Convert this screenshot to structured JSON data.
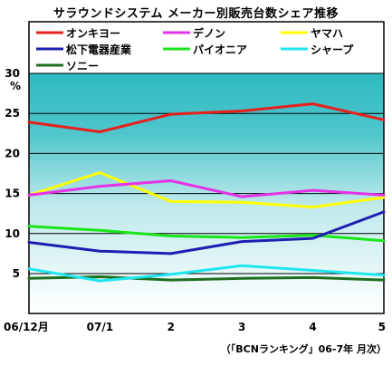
{
  "chart_data": {
    "type": "line",
    "title": "サラウンドシステム メーカー別販売台数シェア推移",
    "ylabel": "%",
    "ylim": [
      0,
      30
    ],
    "yticks": [
      5,
      10,
      15,
      20,
      25,
      30
    ],
    "categories": [
      "06/12月",
      "07/1",
      "2",
      "3",
      "4",
      "5"
    ],
    "note": "（「BCNランキング」06-7年 月次）",
    "series": [
      {
        "name": "オンキヨー",
        "color": "#e8201c",
        "values": [
          23.9,
          22.7,
          24.9,
          25.3,
          26.2,
          24.2
        ]
      },
      {
        "name": "デノン",
        "color": "#e632e6",
        "values": [
          14.8,
          15.9,
          16.6,
          14.6,
          15.4,
          14.8
        ]
      },
      {
        "name": "ヤマハ",
        "color": "#ffff00",
        "values": [
          14.8,
          17.6,
          14.0,
          13.9,
          13.3,
          14.5
        ]
      },
      {
        "name": "松下電器産業",
        "color": "#1e1eb4",
        "values": [
          8.9,
          7.8,
          7.5,
          9.0,
          9.4,
          12.7
        ]
      },
      {
        "name": "パイオニア",
        "color": "#19e619",
        "values": [
          10.9,
          10.4,
          9.7,
          9.5,
          9.8,
          9.1
        ]
      },
      {
        "name": "シャープ",
        "color": "#1ee6f0",
        "values": [
          5.6,
          4.1,
          4.9,
          6.0,
          5.4,
          4.8
        ]
      },
      {
        "name": "ソニー",
        "color": "#1e6e1e",
        "values": [
          4.4,
          4.6,
          4.2,
          4.4,
          4.5,
          4.2
        ]
      }
    ],
    "colors": {
      "band_top": "#2eb9c2",
      "band_bottom": "#ffffff"
    }
  }
}
